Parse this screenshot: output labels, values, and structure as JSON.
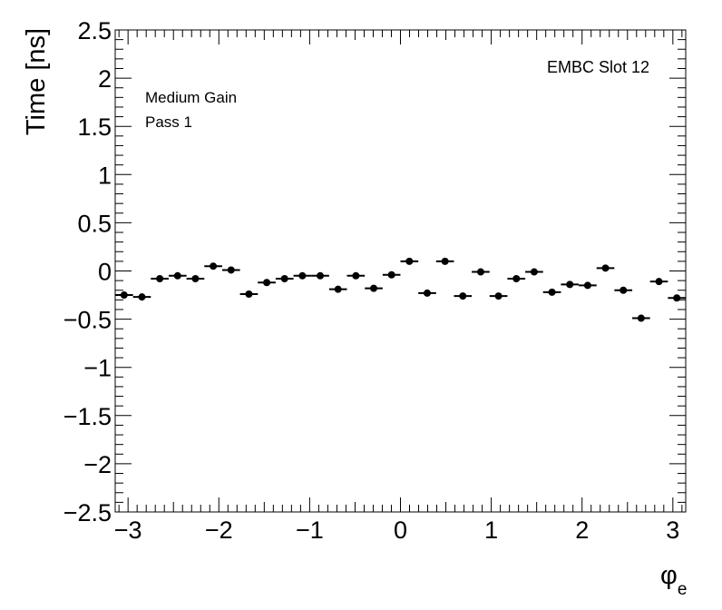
{
  "chart_data": {
    "type": "scatter",
    "title": "",
    "xlabel": "φ",
    "xlabel_subscript": "e",
    "ylabel": "Time [ns]",
    "xlim": [
      -3.1416,
      3.1416
    ],
    "ylim": [
      -2.5,
      2.5
    ],
    "x_ticks": [
      -3,
      -2,
      -1,
      0,
      1,
      2,
      3
    ],
    "x_tick_labels": [
      "−3",
      "−2",
      "−1",
      "0",
      "1",
      "2",
      "3"
    ],
    "y_ticks": [
      -2.5,
      -2,
      -1.5,
      -1,
      -0.5,
      0,
      0.5,
      1,
      1.5,
      2,
      2.5
    ],
    "y_tick_labels": [
      "−2.5",
      "−2",
      "−1.5",
      "−1",
      "−0.5",
      "0",
      "0.5",
      "1",
      "1.5",
      "2",
      "2.5"
    ],
    "grid": false,
    "annotations": {
      "top_right": "EMBC Slot 12",
      "line1": "Medium Gain",
      "line2": "Pass 1"
    },
    "series": [
      {
        "x_error": 0.0982,
        "x": [
          -3.0434,
          -2.8471,
          -2.6507,
          -2.4544,
          -2.258,
          -2.0617,
          -1.8653,
          -1.669,
          -1.4726,
          -1.2763,
          -1.0799,
          -0.8836,
          -0.6872,
          -0.4909,
          -0.2945,
          -0.0982,
          0.0982,
          0.2945,
          0.4909,
          0.6872,
          0.8836,
          1.0799,
          1.2763,
          1.4726,
          1.669,
          1.8653,
          2.0617,
          2.258,
          2.4544,
          2.6507,
          2.8471,
          3.0434
        ],
        "y": [
          -0.25,
          -0.27,
          -0.08,
          -0.05,
          -0.08,
          0.05,
          0.01,
          -0.24,
          -0.12,
          -0.08,
          -0.05,
          -0.05,
          -0.19,
          -0.05,
          -0.18,
          -0.04,
          0.1,
          -0.23,
          0.1,
          -0.26,
          -0.01,
          -0.26,
          -0.08,
          -0.01,
          -0.22,
          -0.14,
          -0.15,
          0.03,
          -0.2,
          -0.49,
          -0.11,
          -0.28
        ]
      }
    ]
  }
}
